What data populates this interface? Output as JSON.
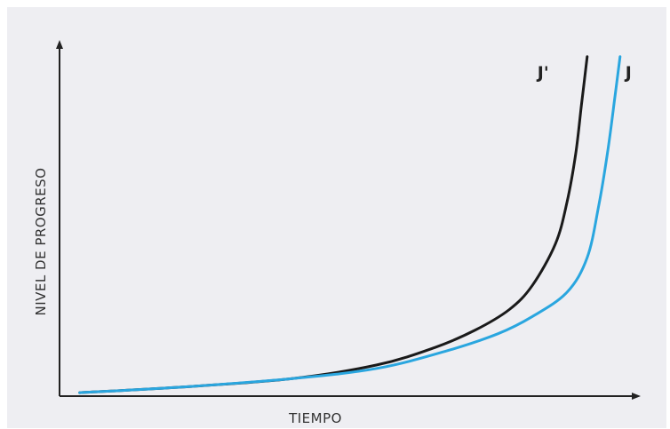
{
  "chart_data": {
    "type": "line",
    "title": "",
    "xlabel": "TIEMPO",
    "ylabel": "NIVEL DE PROGRESO",
    "xlim": [
      0,
      100
    ],
    "ylim": [
      0,
      100
    ],
    "grid": false,
    "legend": "none",
    "series": [
      {
        "name": "J'",
        "color": "#1a1a1a",
        "x": [
          3.5,
          20,
          40,
          55,
          65,
          72,
          78,
          82,
          86,
          88,
          89.5,
          90.5,
          91.5
        ],
        "y": [
          1,
          2.5,
          5,
          9,
          14,
          19,
          25,
          32,
          44,
          56,
          70,
          84,
          98
        ]
      },
      {
        "name": "J",
        "color": "#2aa6df",
        "x": [
          3.5,
          20,
          40,
          55,
          67,
          76,
          82,
          88,
          91.5,
          93.5,
          95,
          96.2,
          97.2
        ],
        "y": [
          1,
          2.5,
          5,
          8,
          13,
          18,
          23,
          30,
          40,
          55,
          70,
          85,
          98
        ]
      }
    ]
  }
}
